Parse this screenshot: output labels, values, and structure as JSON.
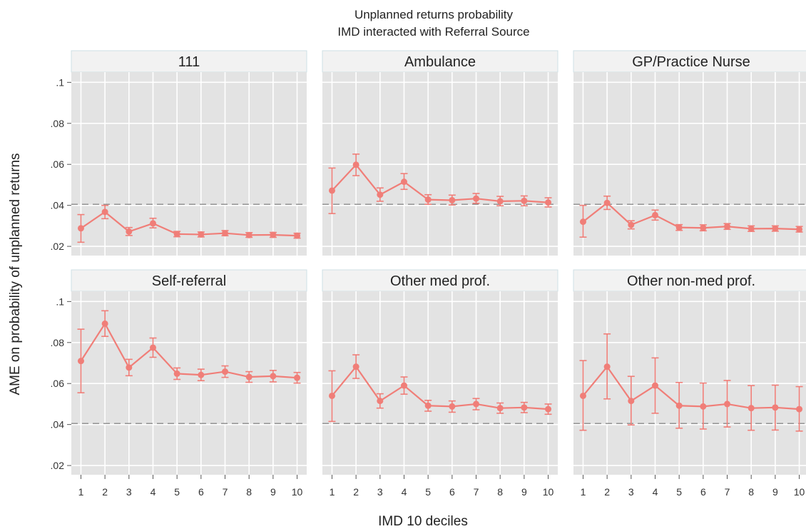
{
  "chart_data": {
    "type": "scatter",
    "title_lines": [
      "Unplanned returns probability",
      "IMD interacted with Referral Source"
    ],
    "xlabel": "IMD 10 deciles",
    "ylabel": "AME on probability of unplanned returns",
    "x": [
      1,
      2,
      3,
      4,
      5,
      6,
      7,
      8,
      9,
      10
    ],
    "x_tick_labels": [
      "1",
      "2",
      "3",
      "4",
      "5",
      "6",
      "7",
      "8",
      "9",
      "10"
    ],
    "y_ticks": [
      0.02,
      0.04,
      0.06,
      0.08,
      0.1
    ],
    "y_tick_labels": [
      ".02",
      ".04",
      ".06",
      ".08",
      ".1"
    ],
    "ylim": [
      0.0155,
      0.105
    ],
    "xlim": [
      0.6,
      10.4
    ],
    "reference_line": 0.0405,
    "series_color": "#f07e78",
    "panel_bg": "#e3e3e3",
    "strip_bg": "#f2f2f2",
    "panels": [
      {
        "label": "111",
        "y": [
          0.0288,
          0.0368,
          0.0272,
          0.0312,
          0.026,
          0.0258,
          0.0264,
          0.0255,
          0.0256,
          0.0252
        ],
        "lo": [
          0.022,
          0.0335,
          0.0253,
          0.029,
          0.0247,
          0.0246,
          0.0252,
          0.0244,
          0.0244,
          0.024
        ],
        "hi": [
          0.0355,
          0.04,
          0.0292,
          0.0337,
          0.0273,
          0.027,
          0.0277,
          0.0267,
          0.0268,
          0.0264
        ]
      },
      {
        "label": "Ambulance",
        "y": [
          0.0472,
          0.0598,
          0.0452,
          0.0515,
          0.0428,
          0.0425,
          0.0433,
          0.042,
          0.0422,
          0.0414
        ],
        "lo": [
          0.036,
          0.0545,
          0.042,
          0.0478,
          0.0405,
          0.0402,
          0.041,
          0.0398,
          0.0398,
          0.0392
        ],
        "hi": [
          0.0582,
          0.065,
          0.0485,
          0.0555,
          0.0452,
          0.045,
          0.0458,
          0.0444,
          0.0446,
          0.0437
        ]
      },
      {
        "label": "GP/Practice Nurse",
        "y": [
          0.032,
          0.0412,
          0.0305,
          0.0352,
          0.0292,
          0.029,
          0.0297,
          0.0286,
          0.0287,
          0.0283
        ],
        "lo": [
          0.0245,
          0.038,
          0.0285,
          0.0328,
          0.0278,
          0.0276,
          0.0283,
          0.0273,
          0.0274,
          0.027
        ],
        "hi": [
          0.04,
          0.0445,
          0.0325,
          0.0377,
          0.0306,
          0.0305,
          0.0311,
          0.03,
          0.03,
          0.0297
        ]
      },
      {
        "label": "Self-referral",
        "y": [
          0.071,
          0.0892,
          0.0678,
          0.0775,
          0.0648,
          0.0642,
          0.0658,
          0.0632,
          0.0636,
          0.0628
        ],
        "lo": [
          0.0555,
          0.083,
          0.0638,
          0.0728,
          0.062,
          0.0614,
          0.063,
          0.0606,
          0.0608,
          0.0602
        ],
        "hi": [
          0.0865,
          0.0955,
          0.0718,
          0.0822,
          0.0676,
          0.067,
          0.0686,
          0.0658,
          0.0664,
          0.0654
        ]
      },
      {
        "label": "Other med prof.",
        "y": [
          0.054,
          0.0682,
          0.0515,
          0.059,
          0.0492,
          0.0488,
          0.05,
          0.048,
          0.0483,
          0.0475
        ],
        "lo": [
          0.0415,
          0.0625,
          0.048,
          0.0548,
          0.0465,
          0.046,
          0.0472,
          0.0455,
          0.0458,
          0.045
        ],
        "hi": [
          0.0662,
          0.074,
          0.055,
          0.0632,
          0.0518,
          0.0515,
          0.0527,
          0.0505,
          0.0508,
          0.05
        ]
      },
      {
        "label": "Other non-med prof.",
        "y": [
          0.054,
          0.0682,
          0.0515,
          0.059,
          0.0492,
          0.0488,
          0.05,
          0.048,
          0.0483,
          0.0475
        ],
        "lo": [
          0.0372,
          0.0525,
          0.0398,
          0.0455,
          0.0382,
          0.0378,
          0.0388,
          0.0372,
          0.0373,
          0.0368
        ],
        "hi": [
          0.0712,
          0.0842,
          0.0635,
          0.0725,
          0.0605,
          0.0602,
          0.0615,
          0.059,
          0.0592,
          0.0585
        ]
      }
    ]
  }
}
